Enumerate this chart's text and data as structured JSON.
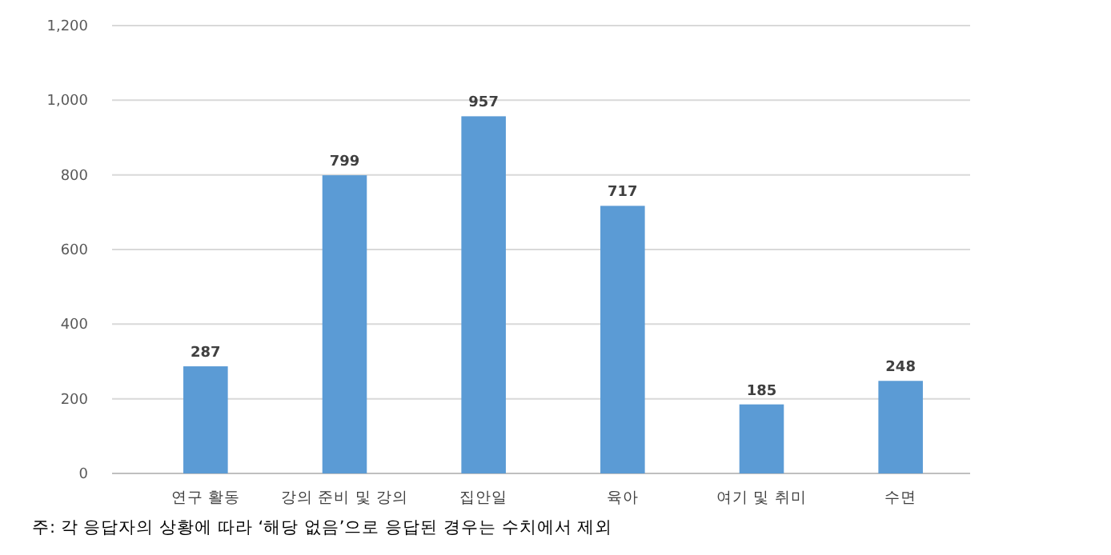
{
  "chart_data": {
    "type": "bar",
    "categories": [
      "연구 활동",
      "강의 준비 및 강의",
      "집안일",
      "육아",
      "여기 및 취미",
      "수면"
    ],
    "values": [
      287,
      799,
      957,
      717,
      185,
      248
    ],
    "color": "#5b9bd5",
    "ylim": [
      0,
      1200
    ],
    "yticks": [
      0,
      {
        "value": 200,
        "label": "200"
      },
      {
        "value": 400,
        "label": "400"
      },
      {
        "value": 600,
        "label": "600"
      },
      {
        "value": 800,
        "label": "800"
      },
      {
        "value": 1000,
        "label": "1,000"
      },
      {
        "value": 1200,
        "label": "1,200"
      }
    ],
    "grid": "y",
    "data_labels": true,
    "annotations": [
      "주: 각 응답자의 상황에 따라 ‘해당 없음’으로 응답된 경우는 수치에서 제외"
    ]
  }
}
